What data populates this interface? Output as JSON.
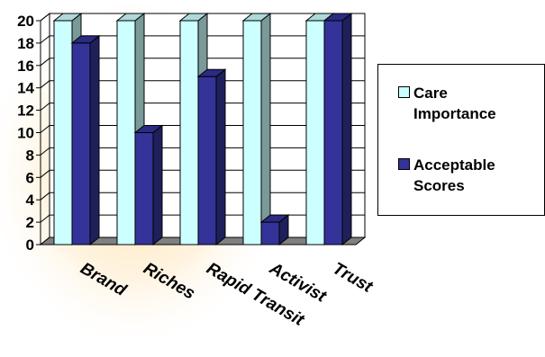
{
  "chart_data": {
    "type": "bar",
    "title": "",
    "xlabel": "",
    "ylabel": "",
    "categories": [
      "Brand",
      "Riches",
      "Rapid Transit",
      "Activist",
      "Trust"
    ],
    "series": [
      {
        "name": "Care Importance",
        "values": [
          20,
          20,
          20,
          20,
          20
        ],
        "color": "#ccffff"
      },
      {
        "name": "Acceptable Scores",
        "values": [
          18,
          10,
          15,
          2,
          20
        ],
        "color": "#333399"
      }
    ],
    "ylim": [
      0,
      20
    ],
    "yticks": [
      0,
      2,
      4,
      6,
      8,
      10,
      12,
      14,
      16,
      18,
      20
    ],
    "grid": true,
    "legend": "right",
    "three_d": true
  },
  "legend": {
    "items": [
      {
        "label": "Care\nImportance",
        "color": "#ccffff"
      },
      {
        "label": "Acceptable\nScores",
        "color": "#333399"
      }
    ]
  }
}
